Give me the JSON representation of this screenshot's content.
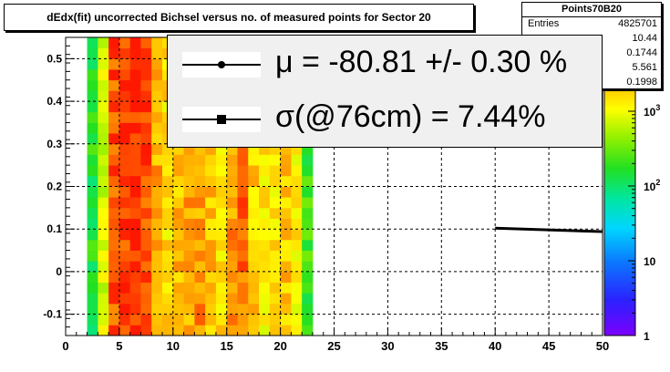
{
  "chart_data": {
    "type": "heatmap",
    "title": "dEdx(fit) uncorrected Bichsel versus no. of measured points for Sector 20",
    "xlim": [
      0,
      50
    ],
    "ylim": [
      -0.15,
      0.55
    ],
    "x_ticks": [
      "0",
      "5",
      "10",
      "15",
      "20",
      "25",
      "30",
      "35",
      "40",
      "45",
      "50"
    ],
    "y_ticks": [
      "-0.1",
      "0",
      "0.1",
      "0.2",
      "0.3",
      "0.4",
      "0.5"
    ],
    "colorbar": {
      "scale": "log",
      "ticks": [
        "1",
        "10",
        "10^2",
        "10^3"
      ]
    },
    "grid": true,
    "x_bins": [
      2,
      3,
      4,
      5,
      6,
      7,
      8,
      9,
      10,
      11,
      12,
      13,
      14,
      15,
      16,
      17,
      18,
      19,
      20,
      21,
      22
    ],
    "columns": [
      {
        "x": 2,
        "level": 0.55
      },
      {
        "x": 3,
        "level": 0.72
      },
      {
        "x": 4,
        "level": 0.95
      },
      {
        "x": 5,
        "level": 0.97
      },
      {
        "x": 6,
        "level": 0.98
      },
      {
        "x": 7,
        "level": 0.96
      },
      {
        "x": 8,
        "level": 0.86
      },
      {
        "x": 9,
        "level": 0.8
      },
      {
        "x": 10,
        "level": 0.84
      },
      {
        "x": 11,
        "level": 0.86
      },
      {
        "x": 12,
        "level": 0.88
      },
      {
        "x": 13,
        "level": 0.83
      },
      {
        "x": 14,
        "level": 0.8
      },
      {
        "x": 15,
        "level": 0.88
      },
      {
        "x": 16,
        "level": 0.92
      },
      {
        "x": 17,
        "level": 0.82
      },
      {
        "x": 18,
        "level": 0.78
      },
      {
        "x": 19,
        "level": 0.8
      },
      {
        "x": 20,
        "level": 0.83
      },
      {
        "x": 21,
        "level": 0.78
      },
      {
        "x": 22,
        "level": 0.58
      }
    ],
    "profile_line": {
      "x": [
        40,
        50
      ],
      "y": [
        0.102,
        0.094
      ]
    }
  },
  "stats": {
    "name": "Points70B20",
    "rows": [
      {
        "label": "Entries",
        "value": "4825701"
      },
      {
        "label": "",
        "value": "10.44"
      },
      {
        "label": "",
        "value": "0.1744"
      },
      {
        "label": "",
        "value": "5.561"
      },
      {
        "label": "",
        "value": "0.1998"
      }
    ]
  },
  "legend": {
    "entries": [
      {
        "text": "μ  = -80.81 +/-  0.30 %",
        "marker": "dot"
      },
      {
        "text": "σ(@76cm) =  7.44%",
        "marker": "square"
      }
    ]
  }
}
